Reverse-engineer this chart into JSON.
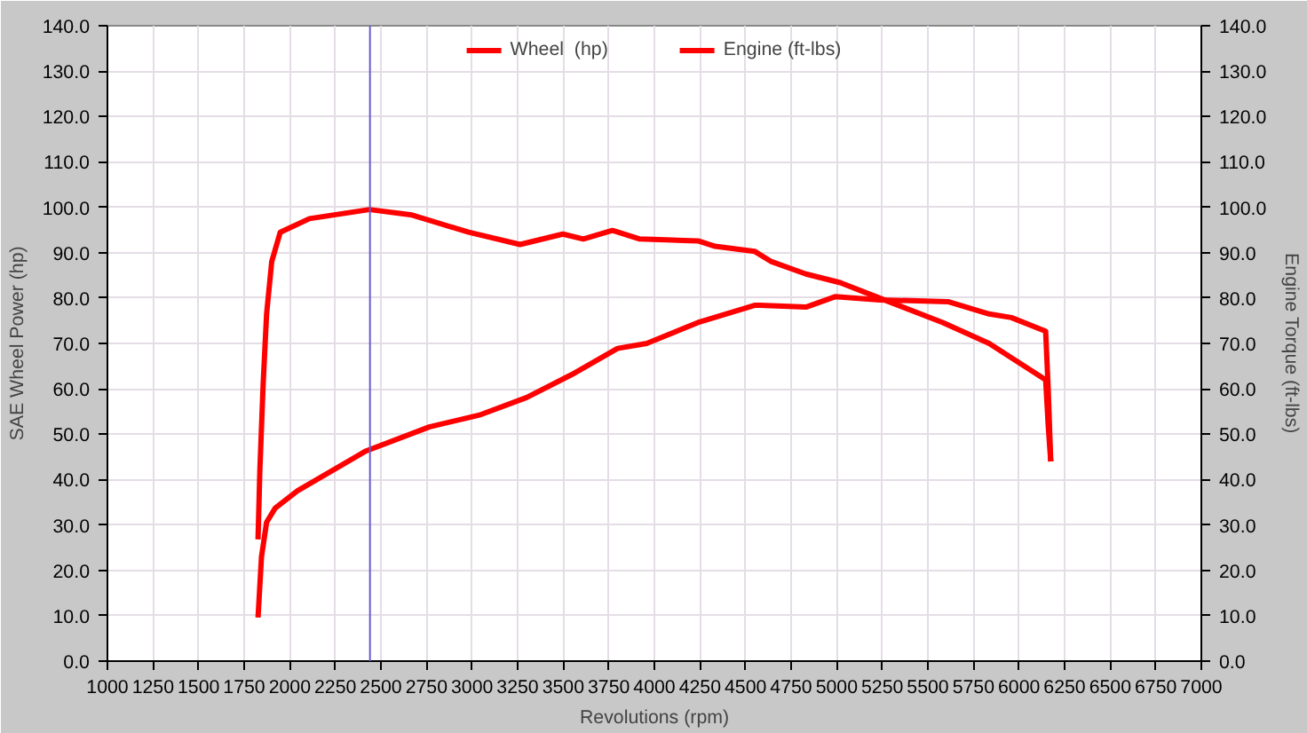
{
  "chart_data": {
    "type": "line",
    "xlabel": "Revolutions (rpm)",
    "ylabel": "SAE Wheel Power (hp)",
    "y2label": "Engine Torque (ft-lbs)",
    "xlim": [
      1000,
      7000
    ],
    "xticks": [
      1000,
      1250,
      1500,
      1750,
      2000,
      2250,
      2500,
      2750,
      3000,
      3250,
      3500,
      3750,
      4000,
      4250,
      4500,
      4750,
      5000,
      5250,
      5500,
      5750,
      6000,
      6250,
      6500,
      6750,
      7000
    ],
    "ylim": [
      0,
      140
    ],
    "yticks": [
      {
        "value": 0,
        "label": "0.0"
      },
      {
        "value": 10,
        "label": "10.0"
      },
      {
        "value": 20,
        "label": "20.0"
      },
      {
        "value": 30,
        "label": "30.0"
      },
      {
        "value": 40,
        "label": "40.0"
      },
      {
        "value": 50,
        "label": "50.0"
      },
      {
        "value": 60,
        "label": "60.0"
      },
      {
        "value": 70,
        "label": "70.0"
      },
      {
        "value": 80,
        "label": "80.0"
      },
      {
        "value": 90,
        "label": "90.0"
      },
      {
        "value": 100,
        "label": "100.0"
      },
      {
        "value": 110,
        "label": "110.0"
      },
      {
        "value": 120,
        "label": "120.0"
      },
      {
        "value": 130,
        "label": "130.0"
      },
      {
        "value": 140,
        "label": "140.0"
      }
    ],
    "y2lim": [
      0,
      140
    ],
    "y2ticks": [
      {
        "value": 0,
        "label": "0.0"
      },
      {
        "value": 10,
        "label": "10.0"
      },
      {
        "value": 20,
        "label": "20.0"
      },
      {
        "value": 30,
        "label": "30.0"
      },
      {
        "value": 40,
        "label": "40.0"
      },
      {
        "value": 50,
        "label": "50.0"
      },
      {
        "value": 60,
        "label": "60.0"
      },
      {
        "value": 70,
        "label": "70.0"
      },
      {
        "value": 80,
        "label": "80.0"
      },
      {
        "value": 90,
        "label": "90.0"
      },
      {
        "value": 100,
        "label": "100.0"
      },
      {
        "value": 110,
        "label": "110.0"
      },
      {
        "value": 120,
        "label": "120.0"
      },
      {
        "value": 130,
        "label": "130.0"
      },
      {
        "value": 140,
        "label": "140.0"
      }
    ],
    "grid": true,
    "legend": "top",
    "line_style": "solid",
    "ref_lines": [
      {
        "axis": "x",
        "value": 2440,
        "color": "#6a5acd"
      }
    ],
    "series": [
      {
        "name": "Wheel  (hp)",
        "color": "#ff0000",
        "x": [
          1826,
          1845,
          1873,
          1920,
          2042,
          2418,
          2765,
          3047,
          3300,
          3545,
          3798,
          3958,
          4239,
          4549,
          4577,
          4831,
          4991,
          5235,
          5610,
          5836,
          5958,
          6146,
          6160,
          6174
        ],
        "values": [
          9.6,
          23,
          30.6,
          33.7,
          37.5,
          46.3,
          51.6,
          54.3,
          58.1,
          63.1,
          68.9,
          70,
          74.6,
          78.4,
          78.4,
          78,
          80.3,
          79.6,
          79.2,
          76.5,
          75.7,
          72.7,
          60,
          44
        ]
      },
      {
        "name": "Engine (ft-lbs)",
        "color": "#ff0000",
        "x": [
          1826,
          1836,
          1854,
          1873,
          1901,
          1948,
          2108,
          2437,
          2671,
          2981,
          3263,
          3498,
          3610,
          3770,
          3920,
          4239,
          4333,
          4549,
          4643,
          4831,
          5019,
          5235,
          5582,
          5836,
          6146,
          6160,
          6174
        ],
        "values": [
          26.8,
          42,
          61,
          76.5,
          88,
          94.5,
          97.5,
          99.5,
          98.3,
          94.5,
          91.8,
          94.1,
          93,
          94.9,
          93,
          92.6,
          91.4,
          90.3,
          88,
          85.3,
          83.4,
          80,
          74.6,
          70,
          62,
          52,
          44
        ]
      }
    ]
  }
}
